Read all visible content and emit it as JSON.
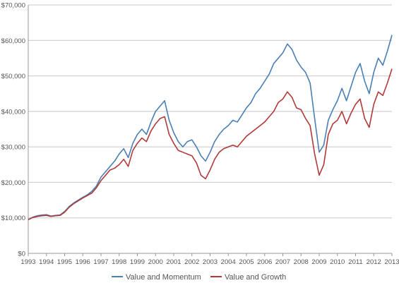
{
  "chart_data": {
    "type": "line",
    "title": "",
    "xlabel": "",
    "ylabel": "",
    "xlim": [
      1993,
      2013
    ],
    "ylim": [
      0,
      70000
    ],
    "grid": true,
    "legend_position": "bottom",
    "x_ticks": [
      "1993",
      "1994",
      "1995",
      "1996",
      "1997",
      "1998",
      "1999",
      "2000",
      "2001",
      "2002",
      "2003",
      "2004",
      "2005",
      "2006",
      "2007",
      "2008",
      "2009",
      "2010",
      "2011",
      "2012",
      "2013"
    ],
    "y_ticks": [
      {
        "value": 0,
        "label": "$0"
      },
      {
        "value": 10000,
        "label": "$10,000"
      },
      {
        "value": 20000,
        "label": "$20,000"
      },
      {
        "value": 30000,
        "label": "$30,000"
      },
      {
        "value": 40000,
        "label": "$40,000"
      },
      {
        "value": 50000,
        "label": "$50,000"
      },
      {
        "value": 60000,
        "label": "$60,000"
      },
      {
        "value": 70000,
        "label": "$70,000"
      }
    ],
    "x": [
      1993.0,
      1993.25,
      1993.5,
      1993.75,
      1994.0,
      1994.25,
      1994.5,
      1994.75,
      1995.0,
      1995.25,
      1995.5,
      1995.75,
      1996.0,
      1996.25,
      1996.5,
      1996.75,
      1997.0,
      1997.25,
      1997.5,
      1997.75,
      1998.0,
      1998.25,
      1998.5,
      1998.75,
      1999.0,
      1999.25,
      1999.5,
      1999.75,
      2000.0,
      2000.25,
      2000.5,
      2000.75,
      2001.0,
      2001.25,
      2001.5,
      2001.75,
      2002.0,
      2002.25,
      2002.5,
      2002.75,
      2003.0,
      2003.25,
      2003.5,
      2003.75,
      2004.0,
      2004.25,
      2004.5,
      2004.75,
      2005.0,
      2005.25,
      2005.5,
      2005.75,
      2006.0,
      2006.25,
      2006.5,
      2006.75,
      2007.0,
      2007.25,
      2007.5,
      2007.75,
      2008.0,
      2008.25,
      2008.5,
      2008.75,
      2009.0,
      2009.25,
      2009.5,
      2009.75,
      2010.0,
      2010.25,
      2010.5,
      2010.75,
      2011.0,
      2011.25,
      2011.5,
      2011.75,
      2012.0,
      2012.25,
      2012.5,
      2012.75,
      2013.0
    ],
    "series": [
      {
        "name": "Value and Momentum",
        "color": "#4a7fb5",
        "values": [
          9500,
          10200,
          10600,
          10800,
          10900,
          10500,
          10700,
          10800,
          11800,
          13200,
          14200,
          15000,
          15800,
          16500,
          17500,
          19000,
          21500,
          23000,
          24500,
          26000,
          28000,
          29500,
          27000,
          31000,
          33500,
          35000,
          33500,
          37000,
          40000,
          41500,
          43000,
          37500,
          34000,
          31500,
          30000,
          31500,
          32000,
          30000,
          27500,
          26000,
          28500,
          31500,
          33500,
          35000,
          36000,
          37500,
          37000,
          39000,
          41000,
          42500,
          45000,
          46500,
          48500,
          50500,
          53500,
          55000,
          56500,
          59000,
          57500,
          54500,
          52500,
          51000,
          48000,
          38000,
          28500,
          30500,
          37500,
          40500,
          43000,
          46500,
          43000,
          47000,
          51000,
          53500,
          48500,
          45000,
          51000,
          55000,
          53000,
          57000,
          61500
        ]
      },
      {
        "name": "Value and Growth",
        "color": "#b03a3a",
        "values": [
          9500,
          10100,
          10400,
          10600,
          10700,
          10400,
          10600,
          10700,
          11600,
          13000,
          14000,
          14800,
          15600,
          16300,
          17000,
          18500,
          20500,
          22000,
          23500,
          24000,
          25000,
          26500,
          24500,
          29000,
          31000,
          32500,
          31500,
          34500,
          36500,
          38000,
          38500,
          33500,
          31000,
          29000,
          28500,
          28000,
          27500,
          25500,
          22000,
          21000,
          23500,
          26500,
          28500,
          29500,
          30000,
          30500,
          30000,
          31500,
          33000,
          34000,
          35000,
          36000,
          37000,
          38500,
          40000,
          42500,
          43500,
          45500,
          44000,
          41000,
          40500,
          38000,
          36000,
          28000,
          22000,
          25000,
          33500,
          36500,
          37500,
          40000,
          36500,
          39500,
          42000,
          43500,
          38000,
          35500,
          42000,
          45500,
          44500,
          48000,
          52000
        ]
      }
    ]
  },
  "colors": {
    "value_and_momentum": "#4a7fb5",
    "value_and_growth": "#b03a3a",
    "grid": "#c8c8c8",
    "axis": "#999999",
    "text": "#555555"
  }
}
